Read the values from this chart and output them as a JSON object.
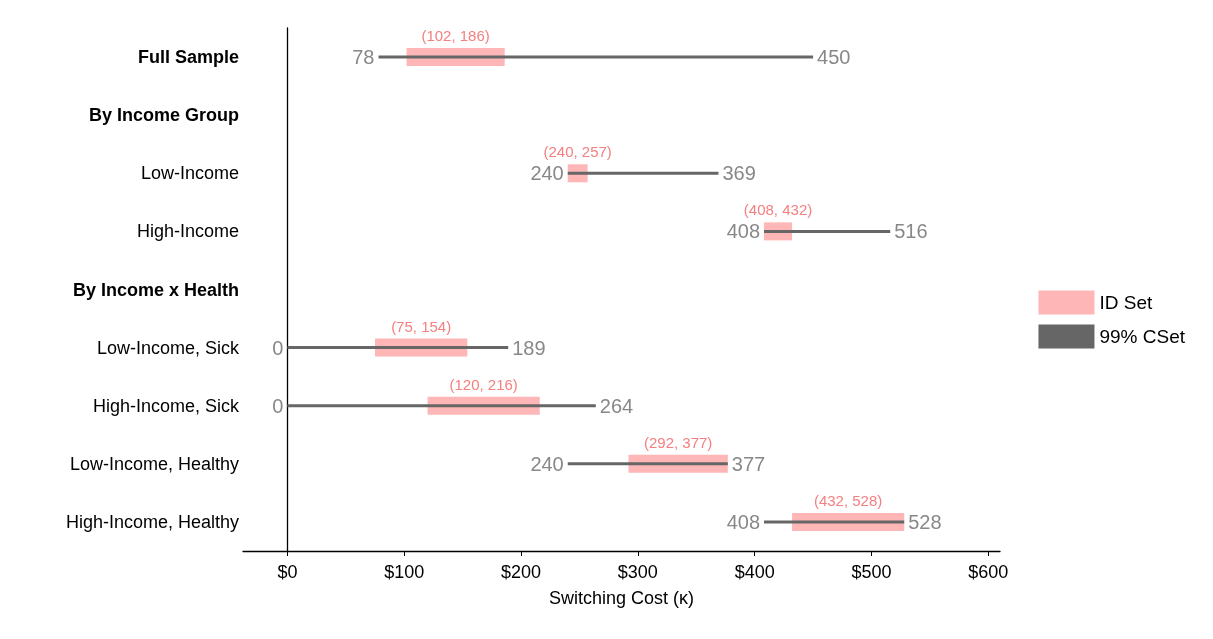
{
  "chart_data": {
    "type": "bar",
    "orientation": "horizontal",
    "xlabel": "Switching Cost (κ)",
    "categories": [
      "Full Sample",
      "By Income Group",
      "Low-Income",
      "High-Income",
      "By Income x Health",
      "Low-Income, Sick",
      "High-Income, Sick",
      "Low-Income, Healthy",
      "High-Income, Healthy"
    ],
    "series": [
      {
        "name": "ID Set",
        "color": "#ffb6b6",
        "base": [
          102,
          null,
          240,
          408,
          null,
          75,
          120,
          292,
          432
        ],
        "values": [
          84,
          null,
          17,
          24,
          null,
          79,
          96,
          85,
          96
        ],
        "value_labels": [
          "(102, 186)",
          null,
          "(240, 257)",
          "(408, 432)",
          null,
          "(75, 154)",
          "(120, 216)",
          "(292, 377)",
          "(432, 528)"
        ]
      },
      {
        "name": "99% CSet",
        "color": "#666666",
        "line_style": "solid",
        "base": [
          78,
          null,
          240,
          408,
          null,
          0,
          0,
          240,
          408
        ],
        "values": [
          372,
          null,
          129,
          108,
          null,
          189,
          264,
          137,
          120
        ],
        "value_labels": [
          [
            "78",
            "450"
          ],
          null,
          [
            "240",
            "369"
          ],
          [
            "408",
            "516"
          ],
          null,
          [
            "0",
            "189"
          ],
          [
            "0",
            "264"
          ],
          [
            "240",
            "377"
          ],
          [
            "408",
            "528"
          ]
        ]
      }
    ],
    "xlim": [
      -38,
      610
    ],
    "xticks": [
      {
        "value": 0,
        "label": "$0"
      },
      {
        "value": 100,
        "label": "$100"
      },
      {
        "value": 200,
        "label": "$200"
      },
      {
        "value": 300,
        "label": "$300"
      },
      {
        "value": 400,
        "label": "$400"
      },
      {
        "value": 500,
        "label": "$500"
      },
      {
        "value": 600,
        "label": "$600"
      }
    ],
    "legend": "right"
  }
}
